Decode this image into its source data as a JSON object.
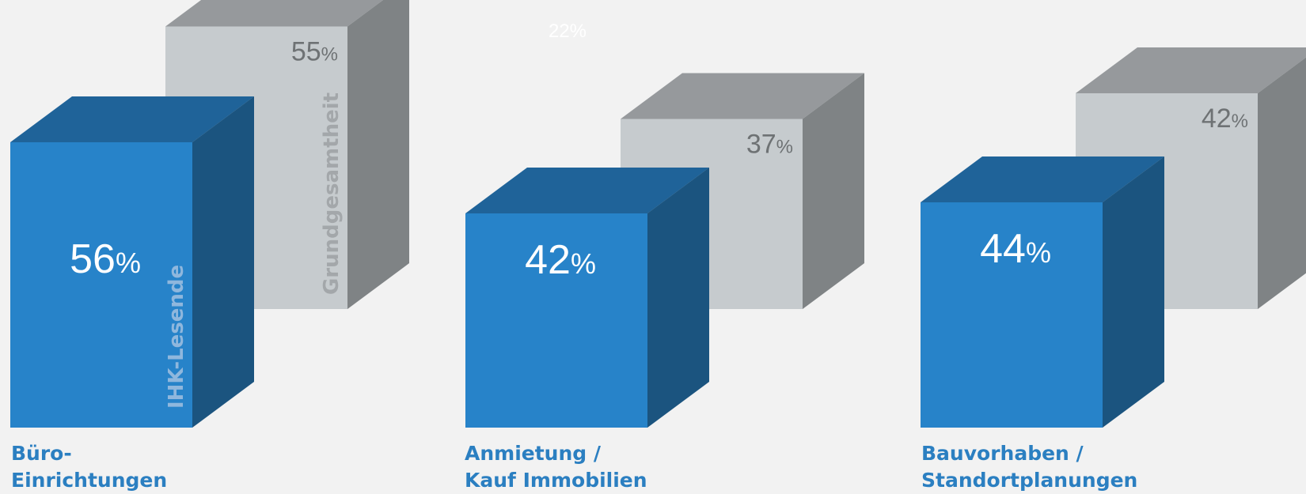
{
  "chart_data": {
    "type": "bar",
    "categories": [
      [
        "Büro-",
        "Einrichtungen"
      ],
      [
        "Anmietung /",
        "Kauf Immobilien"
      ],
      [
        "Bauvorhaben /",
        "Standortplanungen"
      ]
    ],
    "series": [
      {
        "name": "IHK-Lesende",
        "values": [
          56,
          42,
          44
        ]
      },
      {
        "name": "Grundgesamtheit",
        "values": [
          55,
          37,
          42
        ]
      }
    ],
    "unit": "%",
    "stray_label": "22%",
    "ylim": [
      0,
      100
    ],
    "colors": {
      "blue_front": "#2783c9",
      "blue_top": "#1f6399",
      "blue_side": "#1b547f",
      "gray_front": "#c6cbce",
      "gray_top": "#96999c",
      "gray_side": "#7f8385",
      "label_blue": "#2b7fc1",
      "background": "#f2f2f2"
    }
  }
}
